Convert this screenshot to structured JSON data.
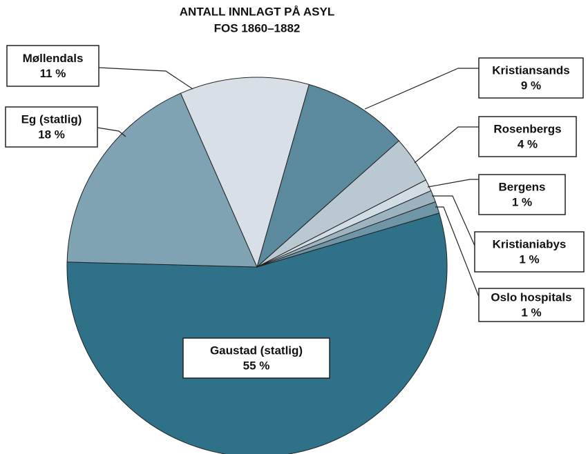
{
  "chart_data": {
    "type": "pie",
    "title": "ANTALL INNLAGT PÅ ASYL",
    "subtitle": "FOS 1860–1882",
    "categories": [
      "Gaustad (statlig)",
      "Eg (statlig)",
      "Møllendals",
      "Kristiansands",
      "Rosenbergs",
      "Bergens",
      "Kristianiabys",
      "Oslo hospitals"
    ],
    "values": [
      55,
      18,
      11,
      9,
      4,
      1,
      1,
      1
    ],
    "value_labels": [
      "55 %",
      "18 %",
      "11 %",
      "9 %",
      "4 %",
      "1 %",
      "1 %",
      "1 %"
    ],
    "colors": [
      "#2e7189",
      "#7fa3b2",
      "#d8dfe6",
      "#5b8a9e",
      "#b9c8d1",
      "#d1dce3",
      "#9db4c0",
      "#6e96a6"
    ]
  }
}
